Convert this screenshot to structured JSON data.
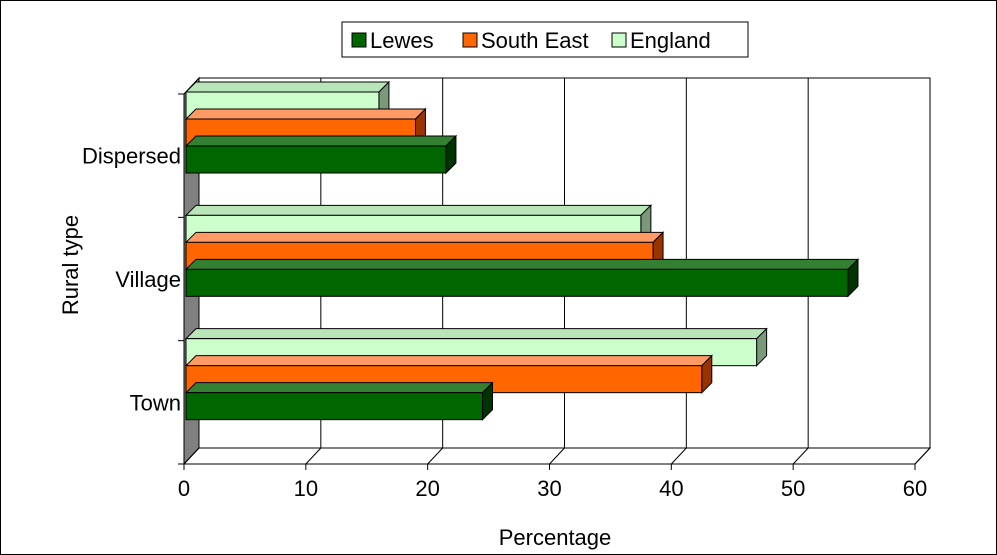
{
  "chart_data": {
    "type": "bar",
    "orientation": "horizontal",
    "three_d": true,
    "categories": [
      "Dispersed",
      "Village",
      "Town"
    ],
    "series": [
      {
        "name": "Lewes",
        "values": [
          21.5,
          54.5,
          24.5
        ],
        "color": "#006600",
        "side_color": "#003300",
        "top_color": "#338033"
      },
      {
        "name": "South East",
        "values": [
          19.0,
          38.5,
          42.5
        ],
        "color": "#ff6600",
        "side_color": "#993300",
        "top_color": "#ff9966"
      },
      {
        "name": "England",
        "values": [
          16.0,
          37.5,
          47.0
        ],
        "color": "#ccffcc",
        "side_color": "#7a997a",
        "top_color": "#b8e6b8"
      }
    ],
    "x_ticks": [
      "0",
      "10",
      "20",
      "30",
      "40",
      "50",
      "60"
    ],
    "xlim": [
      0,
      60
    ],
    "xlabel": "Percentage",
    "ylabel": "Rural type",
    "grid": "vertical",
    "legend_position": "top",
    "wall_color": "#808080",
    "frame_color": "#000000"
  }
}
